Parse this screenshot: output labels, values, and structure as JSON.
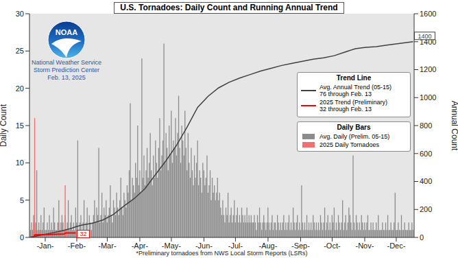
{
  "chart_data": {
    "type": "bar",
    "title": "U.S. Tornadoes: Daily Count and Running Annual Trend",
    "y_label": "Daily Count",
    "y2_label": "Annual Count",
    "footnote": "*Preliminary tornadoes from NWS Local Storm Reports (LSRs)",
    "logo": {
      "name": "NOAA",
      "lines": [
        "National Weather Service",
        "Storm Prediction Center",
        "Feb. 13, 2025"
      ]
    },
    "legend": "right",
    "legend_titles": {
      "line": "Trend Line",
      "bar": "Daily Bars"
    },
    "grid": false,
    "xlim": [
      0,
      366
    ],
    "xticks": [
      {
        "value": 15,
        "label": "-Jan-"
      },
      {
        "value": 45,
        "label": "-Feb-"
      },
      {
        "value": 74,
        "label": "-Mar-"
      },
      {
        "value": 105,
        "label": "-Apr-"
      },
      {
        "value": 135,
        "label": "-May-"
      },
      {
        "value": 166,
        "label": "-Jun-"
      },
      {
        "value": 196,
        "label": "-Jul-"
      },
      {
        "value": 227,
        "label": "-Aug-"
      },
      {
        "value": 258,
        "label": "-Sep-"
      },
      {
        "value": 288,
        "label": "-Oct-"
      },
      {
        "value": 319,
        "label": "-Nov-"
      },
      {
        "value": 349,
        "label": "-Dec-"
      }
    ],
    "ylim": [
      0,
      30
    ],
    "yticks": [
      0,
      5,
      10,
      15,
      20,
      25,
      30
    ],
    "y2lim": [
      0,
      1600
    ],
    "y2ticks": [
      0,
      200,
      400,
      600,
      800,
      1000,
      1200,
      1400,
      1600
    ],
    "series": [
      {
        "name": "Avg. Daily (Prelim. 05-15)",
        "type": "bar",
        "color": "#8c8c8c",
        "x": [
          1,
          2,
          3,
          4,
          5,
          6,
          7,
          8,
          9,
          10,
          11,
          12,
          13,
          14,
          15,
          16,
          17,
          18,
          19,
          20,
          21,
          22,
          23,
          24,
          25,
          26,
          27,
          28,
          29,
          30,
          31,
          32,
          33,
          34,
          35,
          36,
          37,
          38,
          39,
          40,
          41,
          42,
          43,
          44,
          45,
          46,
          47,
          48,
          49,
          50,
          51,
          52,
          53,
          54,
          55,
          56,
          57,
          58,
          59,
          60,
          61,
          62,
          63,
          64,
          65,
          66,
          67,
          68,
          69,
          70,
          71,
          72,
          73,
          74,
          75,
          76,
          77,
          78,
          79,
          80,
          81,
          82,
          83,
          84,
          85,
          86,
          87,
          88,
          89,
          90,
          91,
          92,
          93,
          94,
          95,
          96,
          97,
          98,
          99,
          100,
          101,
          102,
          103,
          104,
          105,
          106,
          107,
          108,
          109,
          110,
          111,
          112,
          113,
          114,
          115,
          116,
          117,
          118,
          119,
          120,
          121,
          122,
          123,
          124,
          125,
          126,
          127,
          128,
          129,
          130,
          131,
          132,
          133,
          134,
          135,
          136,
          137,
          138,
          139,
          140,
          141,
          142,
          143,
          144,
          145,
          146,
          147,
          148,
          149,
          150,
          151,
          152,
          153,
          154,
          155,
          156,
          157,
          158,
          159,
          160,
          161,
          162,
          163,
          164,
          165,
          166,
          167,
          168,
          169,
          170,
          171,
          172,
          173,
          174,
          175,
          176,
          177,
          178,
          179,
          180,
          181,
          182,
          183,
          184,
          185,
          186,
          187,
          188,
          189,
          190,
          191,
          192,
          193,
          194,
          195,
          196,
          197,
          198,
          199,
          200,
          201,
          202,
          203,
          204,
          205,
          206,
          207,
          208,
          209,
          210,
          211,
          212,
          213,
          214,
          215,
          216,
          217,
          218,
          219,
          220,
          221,
          222,
          223,
          224,
          225,
          226,
          227,
          228,
          229,
          230,
          231,
          232,
          233,
          234,
          235,
          236,
          237,
          238,
          239,
          240,
          241,
          242,
          243,
          244,
          245,
          246,
          247,
          248,
          249,
          250,
          251,
          252,
          253,
          254,
          255,
          256,
          257,
          258,
          259,
          260,
          261,
          262,
          263,
          264,
          265,
          266,
          267,
          268,
          269,
          270,
          271,
          272,
          273,
          274,
          275,
          276,
          277,
          278,
          279,
          280,
          281,
          282,
          283,
          284,
          285,
          286,
          287,
          288,
          289,
          290,
          291,
          292,
          293,
          294,
          295,
          296,
          297,
          298,
          299,
          300,
          301,
          302,
          303,
          304,
          305,
          306,
          307,
          308,
          309,
          310,
          311,
          312,
          313,
          314,
          315,
          316,
          317,
          318,
          319,
          320,
          321,
          322,
          323,
          324,
          325,
          326,
          327,
          328,
          329,
          330,
          331,
          332,
          333,
          334,
          335,
          336,
          337,
          338,
          339,
          340,
          341,
          342,
          343,
          344,
          345,
          346,
          347,
          348,
          349,
          350,
          351,
          352,
          353,
          354,
          355,
          356,
          357,
          358,
          359,
          360,
          361,
          362,
          363,
          364,
          365
        ],
        "values": [
          1,
          2,
          1,
          3,
          1,
          2,
          9,
          1,
          2,
          1,
          3,
          1,
          2,
          4,
          1,
          1,
          2,
          1,
          3,
          1,
          2,
          1,
          4,
          2,
          1,
          1,
          2,
          5,
          1,
          2,
          3,
          2,
          1,
          3,
          1,
          2,
          5,
          1,
          2,
          3,
          1,
          2,
          1,
          4,
          2,
          13,
          1,
          2,
          3,
          1,
          2,
          5,
          1,
          2,
          4,
          1,
          3,
          2,
          1,
          2,
          3,
          5,
          2,
          4,
          3,
          12,
          2,
          3,
          6,
          2,
          4,
          3,
          5,
          2,
          3,
          4,
          7,
          3,
          2,
          5,
          4,
          3,
          6,
          4,
          3,
          5,
          8,
          4,
          3,
          6,
          5,
          4,
          7,
          6,
          9,
          18,
          5,
          8,
          7,
          6,
          10,
          8,
          15,
          7,
          9,
          6,
          24,
          8,
          11,
          7,
          9,
          12,
          8,
          10,
          14,
          9,
          7,
          11,
          8,
          13,
          10,
          8,
          12,
          16,
          9,
          11,
          13,
          26,
          10,
          14,
          12,
          9,
          15,
          11,
          17,
          10,
          13,
          12,
          16,
          11,
          14,
          19,
          12,
          10,
          15,
          13,
          11,
          17,
          12,
          9,
          14,
          10,
          8,
          12,
          9,
          7,
          11,
          8,
          10,
          13,
          7,
          9,
          8,
          6,
          10,
          9,
          7,
          8,
          11,
          6,
          7,
          9,
          5,
          8,
          6,
          7,
          5,
          6,
          8,
          5,
          6,
          4,
          3,
          5,
          3,
          2,
          4,
          3,
          6,
          2,
          3,
          4,
          2,
          3,
          5,
          2,
          3,
          4,
          2,
          3,
          2,
          4,
          3,
          2,
          3,
          2,
          4,
          2,
          3,
          2,
          3,
          2,
          2,
          3,
          2,
          1,
          3,
          2,
          4,
          2,
          1,
          2,
          3,
          2,
          1,
          2,
          4,
          2,
          1,
          2,
          3,
          1,
          2,
          2,
          1,
          3,
          2,
          1,
          2,
          1,
          2,
          3,
          1,
          2,
          1,
          2,
          3,
          1,
          2,
          1,
          4,
          2,
          1,
          2,
          3,
          1,
          2,
          1,
          7,
          2,
          1,
          2,
          1,
          3,
          1,
          2,
          1,
          2,
          1,
          3,
          2,
          1,
          2,
          1,
          2,
          1,
          3,
          2,
          1,
          2,
          4,
          1,
          2,
          3,
          1,
          2,
          1,
          3,
          2,
          4,
          1,
          2,
          1,
          3,
          2,
          1,
          2,
          5,
          1,
          2,
          3,
          1,
          2,
          4,
          3,
          2,
          1,
          11,
          2,
          1,
          3,
          2,
          1,
          2,
          1,
          3,
          2,
          1,
          2,
          1,
          2,
          3,
          1,
          1,
          2,
          1,
          2,
          1,
          1,
          2,
          1,
          3,
          1,
          1,
          1,
          2,
          1,
          1,
          2,
          1,
          3,
          1,
          1,
          2,
          1,
          1,
          2,
          6,
          1,
          1,
          2,
          1,
          1,
          3,
          1,
          1,
          2,
          1,
          1,
          1,
          2,
          1,
          1,
          2,
          1
        ]
      },
      {
        "name": "2025 Daily Tornadoes",
        "type": "bar",
        "color": "#f07070",
        "x": [
          4,
          5,
          6,
          10,
          20,
          28,
          33,
          34,
          35
        ],
        "values": [
          2,
          16,
          1,
          1,
          1,
          2,
          1,
          7,
          1
        ]
      },
      {
        "name": "Avg. Annual Trend (05-15)",
        "legend_detail": "76 through Feb. 13",
        "type": "line",
        "color": "#404040",
        "axis": "y2",
        "x": [
          1,
          10,
          20,
          30,
          40,
          44,
          50,
          60,
          70,
          80,
          90,
          100,
          110,
          120,
          130,
          140,
          150,
          160,
          170,
          180,
          190,
          200,
          210,
          220,
          230,
          240,
          250,
          260,
          270,
          280,
          290,
          300,
          310,
          320,
          330,
          340,
          350,
          360,
          365
        ],
        "values": [
          2,
          15,
          30,
          45,
          65,
          76,
          88,
          102,
          125,
          165,
          225,
          280,
          350,
          450,
          550,
          660,
          790,
          930,
          1010,
          1070,
          1110,
          1140,
          1165,
          1190,
          1210,
          1230,
          1245,
          1260,
          1275,
          1285,
          1300,
          1325,
          1350,
          1360,
          1365,
          1375,
          1385,
          1395,
          1400
        ]
      },
      {
        "name": "2025 Trend (Preliminary)",
        "legend_detail": "32 through Feb. 13",
        "type": "line",
        "color": "#ff0000",
        "axis": "y2",
        "x": [
          1,
          4,
          5,
          6,
          10,
          20,
          28,
          33,
          34,
          35,
          44
        ],
        "values": [
          0,
          2,
          18,
          19,
          20,
          21,
          23,
          24,
          31,
          32,
          32
        ]
      }
    ]
  }
}
